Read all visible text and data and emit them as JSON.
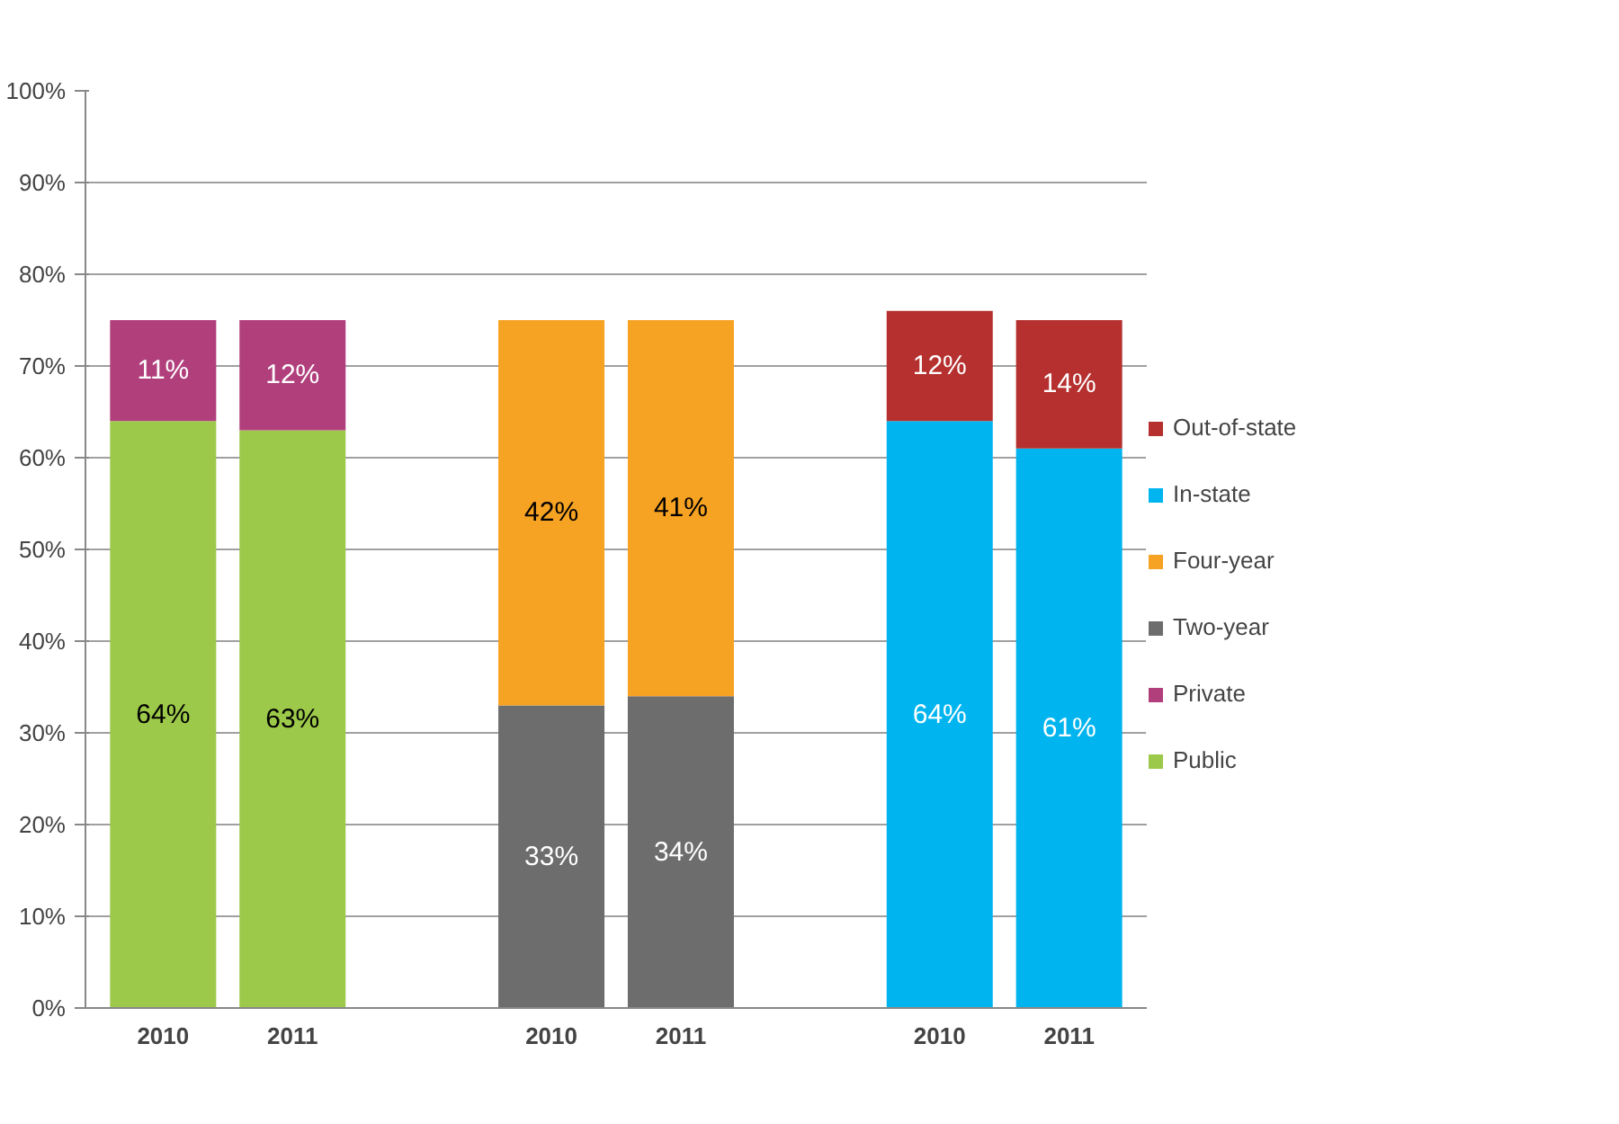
{
  "chart_data": {
    "type": "bar",
    "stacked": true,
    "categories": [
      "2010",
      "2011",
      null,
      "2010",
      "2011",
      null,
      "2010",
      "2011"
    ],
    "series": [
      {
        "name": "Public",
        "color": "#9dc94a",
        "values": [
          64,
          63,
          null,
          null,
          null,
          null,
          null,
          null
        ],
        "value_labels": [
          "64%",
          "63%",
          null,
          null,
          null,
          null,
          null,
          null
        ]
      },
      {
        "name": "Private",
        "color": "#b03f7c",
        "values": [
          11,
          12,
          null,
          null,
          null,
          null,
          null,
          null
        ],
        "value_labels": [
          "11%",
          "12%",
          null,
          null,
          null,
          null,
          null,
          null
        ]
      },
      {
        "name": "Two-year",
        "color": "#6d6d6d",
        "values": [
          null,
          null,
          null,
          33,
          34,
          null,
          null,
          null
        ],
        "value_labels": [
          null,
          null,
          null,
          "33%",
          "34%",
          null,
          null,
          null
        ]
      },
      {
        "name": "Four-year",
        "color": "#f6a223",
        "values": [
          null,
          null,
          null,
          42,
          41,
          null,
          null,
          null
        ],
        "value_labels": [
          null,
          null,
          null,
          "42%",
          "41%",
          null,
          null,
          null
        ]
      },
      {
        "name": "In-state",
        "color": "#00b5ef",
        "values": [
          null,
          null,
          null,
          null,
          null,
          null,
          64,
          61
        ],
        "value_labels": [
          null,
          null,
          null,
          null,
          null,
          null,
          "64%",
          "61%"
        ]
      },
      {
        "name": "Out-of-state",
        "color": "#b5302f",
        "values": [
          null,
          null,
          null,
          null,
          null,
          null,
          12,
          14
        ],
        "value_labels": [
          null,
          null,
          null,
          null,
          null,
          null,
          "12%",
          "14%"
        ]
      }
    ],
    "ylim": [
      0,
      100
    ],
    "yticks": [
      {
        "value": 0,
        "label": "0%"
      },
      {
        "value": 10,
        "label": "10%"
      },
      {
        "value": 20,
        "label": "20%"
      },
      {
        "value": 30,
        "label": "30%"
      },
      {
        "value": 40,
        "label": "40%"
      },
      {
        "value": 50,
        "label": "50%"
      },
      {
        "value": 60,
        "label": "60%"
      },
      {
        "value": 70,
        "label": "70%"
      },
      {
        "value": 80,
        "label": "80%"
      },
      {
        "value": 90,
        "label": "90%"
      },
      {
        "value": 100,
        "label": "100%"
      }
    ],
    "grid": "y",
    "legend": "right"
  }
}
